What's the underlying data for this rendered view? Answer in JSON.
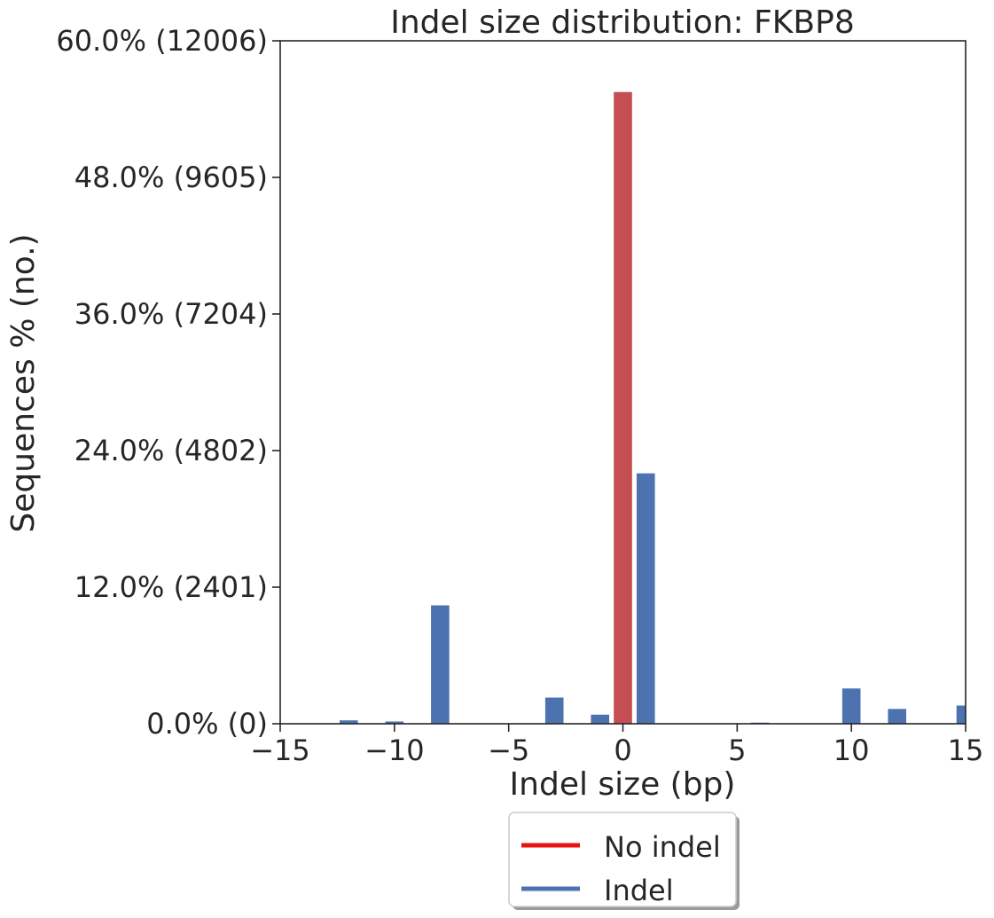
{
  "chart_data": {
    "type": "bar",
    "title": "Indel size distribution: FKBP8",
    "xlabel": "Indel size (bp)",
    "ylabel": "Sequences % (no.)",
    "xlim": [
      -15,
      15
    ],
    "ylim": [
      0,
      60
    ],
    "x_ticks": [
      {
        "value": -15,
        "label": "−15"
      },
      {
        "value": -10,
        "label": "−10"
      },
      {
        "value": -5,
        "label": "−5"
      },
      {
        "value": 0,
        "label": "0"
      },
      {
        "value": 5,
        "label": "5"
      },
      {
        "value": 10,
        "label": "10"
      },
      {
        "value": 15,
        "label": "15"
      }
    ],
    "y_ticks": [
      {
        "value": 0,
        "label": "0.0% (0)"
      },
      {
        "value": 12,
        "label": "12.0% (2401)"
      },
      {
        "value": 24,
        "label": "24.0% (4802)"
      },
      {
        "value": 36,
        "label": "36.0% (7204)"
      },
      {
        "value": 48,
        "label": "48.0% (9605)"
      },
      {
        "value": 60,
        "label": "60.0% (12006)"
      }
    ],
    "series": [
      {
        "name": "No indel",
        "color": "#c44e52",
        "legend_color": "#ee1111",
        "bars": [
          {
            "x": 0,
            "value": 55.5
          }
        ]
      },
      {
        "name": "Indel",
        "color": "#4c72b0",
        "legend_color": "#4c72b0",
        "bars": [
          {
            "x": -12,
            "value": 0.3
          },
          {
            "x": -10,
            "value": 0.2
          },
          {
            "x": -8,
            "value": 10.4
          },
          {
            "x": -3,
            "value": 2.3
          },
          {
            "x": -1,
            "value": 0.8
          },
          {
            "x": 1,
            "value": 22.0
          },
          {
            "x": 6,
            "value": 0.1
          },
          {
            "x": 10,
            "value": 3.1
          },
          {
            "x": 12,
            "value": 1.3
          },
          {
            "x": 15,
            "value": 1.6
          }
        ]
      }
    ],
    "legend_placement": "bottom-center",
    "grid": false
  }
}
